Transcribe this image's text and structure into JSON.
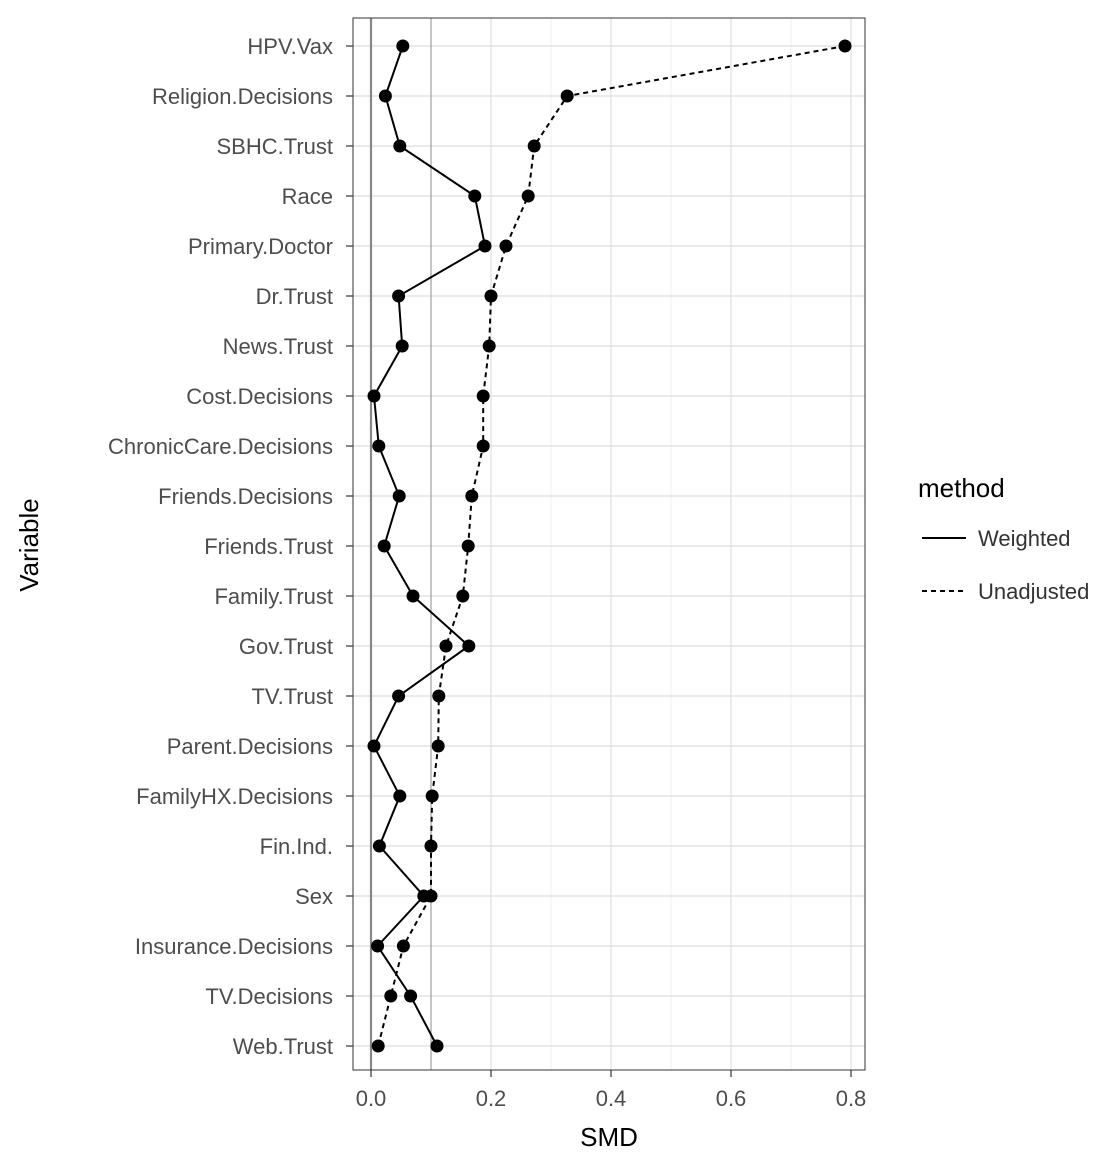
{
  "chart_data": {
    "type": "line",
    "xlabel": "SMD",
    "ylabel": "Variable",
    "xlim": [
      -0.03,
      0.82
    ],
    "x_ticks": [
      0.0,
      0.2,
      0.4,
      0.6,
      0.8
    ],
    "x_tick_labels": [
      "0.0",
      "0.2",
      "0.4",
      "0.6",
      "0.8"
    ],
    "grid": true,
    "reference_lines": [
      0.0,
      0.1
    ],
    "legend": {
      "title": "method",
      "placement": "right",
      "entries": [
        {
          "label": "Weighted",
          "line": "solid"
        },
        {
          "label": "Unadjusted",
          "line": "dashed"
        }
      ]
    },
    "categories": [
      "HPV.Vax",
      "Religion.Decisions",
      "SBHC.Trust",
      "Race",
      "Primary.Doctor",
      "Dr.Trust",
      "News.Trust",
      "Cost.Decisions",
      "ChronicCare.Decisions",
      "Friends.Decisions",
      "Friends.Trust",
      "Family.Trust",
      "Gov.Trust",
      "TV.Trust",
      "Parent.Decisions",
      "FamilyHX.Decisions",
      "Fin.Ind.",
      "Sex",
      "Insurance.Decisions",
      "TV.Decisions",
      "Web.Trust"
    ],
    "series": [
      {
        "name": "Weighted",
        "line": "solid",
        "values": [
          0.053,
          0.024,
          0.048,
          0.173,
          0.19,
          0.046,
          0.052,
          0.005,
          0.013,
          0.047,
          0.022,
          0.07,
          0.163,
          0.046,
          0.005,
          0.048,
          0.014,
          0.088,
          0.011,
          0.066,
          0.11
        ]
      },
      {
        "name": "Unadjusted",
        "line": "dashed",
        "values": [
          0.79,
          0.327,
          0.272,
          0.262,
          0.225,
          0.2,
          0.197,
          0.187,
          0.187,
          0.168,
          0.162,
          0.153,
          0.125,
          0.113,
          0.112,
          0.102,
          0.1,
          0.1,
          0.054,
          0.033,
          0.012
        ]
      }
    ]
  }
}
